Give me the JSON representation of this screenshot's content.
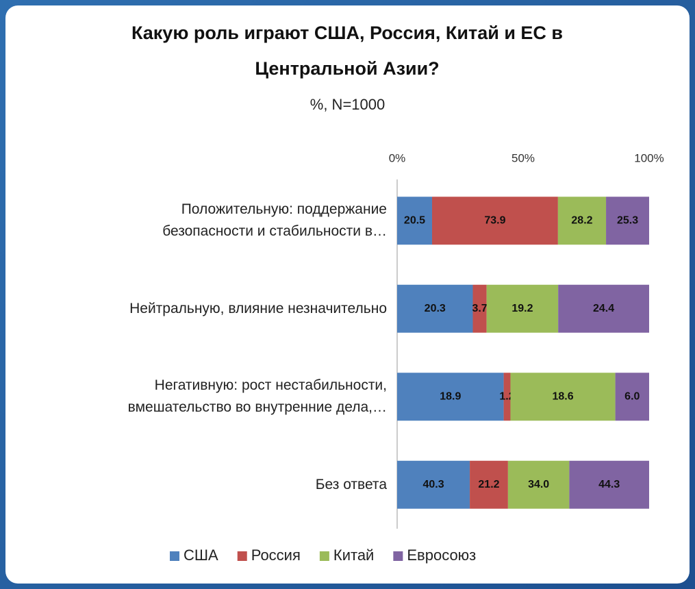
{
  "chart_data": {
    "type": "bar",
    "orientation": "horizontal",
    "stacked": "percent",
    "title": "Какую роль играют США, Россия, Китай и ЕС в  Центральной Азии?",
    "subtitle": "%, N=1000",
    "categories": [
      "Положительную: поддержание безопасности и стабильности в…",
      "Нейтральную, влияние незначительно",
      "Негативную: рост нестабильности, вмешательство во внутренние дела,…",
      "Без ответа"
    ],
    "series": [
      {
        "name": "США",
        "color": "#4f81bd",
        "values": [
          20.5,
          20.3,
          18.9,
          40.3
        ],
        "value_labels": [
          "20.5",
          "20.3",
          "18.9",
          "40.3"
        ]
      },
      {
        "name": "Россия",
        "color": "#c0504d",
        "values": [
          73.9,
          3.7,
          1.2,
          21.2
        ],
        "value_labels": [
          "73.9",
          "3.7",
          "1.2",
          "21.2"
        ]
      },
      {
        "name": "Китай",
        "color": "#9bbb59",
        "values": [
          28.2,
          19.2,
          18.6,
          34.0
        ],
        "value_labels": [
          "28.2",
          "19.2",
          "18.6",
          "34.0"
        ]
      },
      {
        "name": "Евросоюз",
        "color": "#8064a2",
        "values": [
          25.3,
          24.4,
          6.0,
          44.3
        ],
        "value_labels": [
          "25.3",
          "24.4",
          "6.0",
          "44.3"
        ]
      }
    ],
    "xlim": [
      0,
      100
    ],
    "xticks": [
      {
        "value": 0,
        "label": "0%"
      },
      {
        "value": 50,
        "label": "50%"
      },
      {
        "value": 100,
        "label": "100%"
      }
    ],
    "legend": "bottom"
  }
}
